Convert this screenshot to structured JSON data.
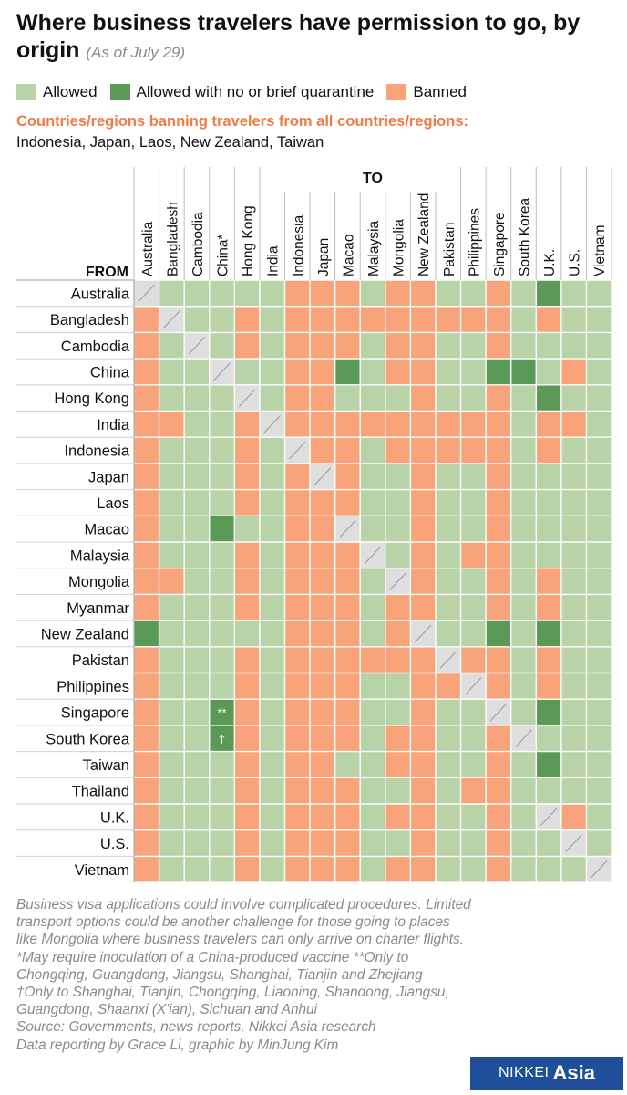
{
  "title": "Where business travelers have permission to go, by origin",
  "subtitle": "(As of July 29)",
  "legend": {
    "allowed": "Allowed",
    "quarantine": "Allowed with no or brief quarantine",
    "banned": "Banned"
  },
  "colors": {
    "allowed": "#b9d3a8",
    "quarantine": "#5b9a56",
    "banned": "#f8a37a",
    "self": "#dedede",
    "accent": "#f07c45",
    "brand": "#1f4f9a"
  },
  "banned_all_heading": "Countries/regions banning travelers from all countries/regions:",
  "banned_all_list": "Indonesia, Japan, Laos, New Zealand, Taiwan",
  "chart_data": {
    "type": "heatmap",
    "row_axis_label": "FROM",
    "col_axis_label": "TO",
    "legend_placement": "top",
    "rows": [
      "Australia",
      "Bangladesh",
      "Cambodia",
      "China",
      "Hong Kong",
      "India",
      "Indonesia",
      "Japan",
      "Laos",
      "Macao",
      "Malaysia",
      "Mongolia",
      "Myanmar",
      "New Zealand",
      "Pakistan",
      "Philippines",
      "Singapore",
      "South Korea",
      "Taiwan",
      "Thailand",
      "U.K.",
      "U.S.",
      "Vietnam"
    ],
    "columns": [
      "Australia",
      "Bangladesh",
      "Cambodia",
      "China*",
      "Hong Kong",
      "India",
      "Indonesia",
      "Japan",
      "Macao",
      "Malaysia",
      "Mongolia",
      "New Zealand",
      "Pakistan",
      "Philippines",
      "Singapore",
      "South Korea",
      "U.K.",
      "U.S.",
      "Vietnam"
    ],
    "code_key": {
      "A": "Allowed",
      "Q": "Allowed with no or brief quarantine",
      "B": "Banned",
      "-": "Same origin and destination"
    },
    "values": [
      [
        "-",
        "A",
        "A",
        "A",
        "A",
        "A",
        "B",
        "B",
        "B",
        "A",
        "B",
        "B",
        "A",
        "A",
        "B",
        "A",
        "Q",
        "A",
        "A"
      ],
      [
        "B",
        "-",
        "A",
        "A",
        "B",
        "A",
        "B",
        "B",
        "B",
        "B",
        "B",
        "B",
        "B",
        "B",
        "B",
        "A",
        "B",
        "A",
        "A"
      ],
      [
        "B",
        "A",
        "-",
        "A",
        "B",
        "A",
        "B",
        "B",
        "B",
        "A",
        "B",
        "B",
        "A",
        "A",
        "B",
        "A",
        "A",
        "A",
        "A"
      ],
      [
        "B",
        "A",
        "A",
        "-",
        "A",
        "A",
        "B",
        "B",
        "Q",
        "A",
        "B",
        "B",
        "A",
        "A",
        "Q",
        "Q",
        "A",
        "B",
        "A"
      ],
      [
        "B",
        "A",
        "A",
        "A",
        "-",
        "A",
        "B",
        "B",
        "A",
        "A",
        "A",
        "B",
        "A",
        "A",
        "B",
        "A",
        "Q",
        "A",
        "A"
      ],
      [
        "B",
        "B",
        "A",
        "A",
        "B",
        "-",
        "B",
        "B",
        "B",
        "B",
        "B",
        "B",
        "B",
        "B",
        "B",
        "A",
        "B",
        "B",
        "A"
      ],
      [
        "B",
        "A",
        "A",
        "A",
        "B",
        "A",
        "-",
        "B",
        "B",
        "A",
        "B",
        "B",
        "B",
        "B",
        "B",
        "A",
        "B",
        "A",
        "A"
      ],
      [
        "B",
        "A",
        "A",
        "A",
        "B",
        "A",
        "B",
        "-",
        "B",
        "A",
        "A",
        "B",
        "A",
        "A",
        "B",
        "A",
        "A",
        "A",
        "A"
      ],
      [
        "B",
        "A",
        "A",
        "A",
        "B",
        "A",
        "B",
        "B",
        "B",
        "A",
        "A",
        "B",
        "A",
        "A",
        "B",
        "A",
        "A",
        "A",
        "A"
      ],
      [
        "B",
        "A",
        "A",
        "Q",
        "A",
        "A",
        "B",
        "B",
        "-",
        "A",
        "A",
        "B",
        "A",
        "A",
        "B",
        "A",
        "A",
        "A",
        "A"
      ],
      [
        "B",
        "A",
        "A",
        "A",
        "B",
        "A",
        "B",
        "B",
        "B",
        "-",
        "A",
        "B",
        "A",
        "B",
        "B",
        "A",
        "A",
        "A",
        "A"
      ],
      [
        "B",
        "B",
        "A",
        "A",
        "B",
        "A",
        "B",
        "B",
        "B",
        "A",
        "-",
        "B",
        "A",
        "A",
        "B",
        "A",
        "B",
        "A",
        "A"
      ],
      [
        "B",
        "A",
        "A",
        "A",
        "B",
        "A",
        "B",
        "B",
        "B",
        "A",
        "B",
        "B",
        "A",
        "A",
        "B",
        "A",
        "B",
        "A",
        "A"
      ],
      [
        "Q",
        "A",
        "A",
        "A",
        "A",
        "A",
        "B",
        "B",
        "B",
        "A",
        "B",
        "-",
        "A",
        "A",
        "Q",
        "A",
        "Q",
        "A",
        "A"
      ],
      [
        "B",
        "A",
        "A",
        "A",
        "B",
        "A",
        "B",
        "B",
        "B",
        "B",
        "B",
        "B",
        "-",
        "B",
        "B",
        "A",
        "B",
        "A",
        "A"
      ],
      [
        "B",
        "A",
        "A",
        "A",
        "B",
        "A",
        "B",
        "B",
        "B",
        "A",
        "A",
        "B",
        "B",
        "-",
        "B",
        "A",
        "B",
        "A",
        "A"
      ],
      [
        "B",
        "A",
        "A",
        "Q",
        "B",
        "A",
        "B",
        "B",
        "B",
        "A",
        "A",
        "B",
        "A",
        "A",
        "-",
        "A",
        "Q",
        "A",
        "A"
      ],
      [
        "B",
        "A",
        "A",
        "Q",
        "B",
        "A",
        "B",
        "B",
        "B",
        "A",
        "B",
        "B",
        "A",
        "A",
        "B",
        "-",
        "A",
        "A",
        "A"
      ],
      [
        "B",
        "A",
        "A",
        "A",
        "B",
        "A",
        "B",
        "B",
        "A",
        "A",
        "B",
        "B",
        "A",
        "A",
        "B",
        "A",
        "Q",
        "A",
        "A"
      ],
      [
        "B",
        "A",
        "A",
        "A",
        "B",
        "A",
        "B",
        "B",
        "B",
        "A",
        "A",
        "B",
        "A",
        "B",
        "B",
        "A",
        "A",
        "A",
        "A"
      ],
      [
        "B",
        "A",
        "A",
        "A",
        "B",
        "A",
        "B",
        "B",
        "B",
        "A",
        "B",
        "B",
        "A",
        "A",
        "B",
        "A",
        "-",
        "B",
        "A"
      ],
      [
        "B",
        "A",
        "A",
        "A",
        "B",
        "A",
        "B",
        "B",
        "B",
        "A",
        "A",
        "B",
        "A",
        "A",
        "B",
        "A",
        "A",
        "-",
        "A"
      ],
      [
        "B",
        "A",
        "A",
        "A",
        "B",
        "A",
        "B",
        "B",
        "B",
        "A",
        "B",
        "B",
        "A",
        "A",
        "B",
        "A",
        "A",
        "A",
        "-"
      ]
    ],
    "cell_marks": [
      {
        "row": "Singapore",
        "column": "China*",
        "mark": "**"
      },
      {
        "row": "South Korea",
        "column": "China*",
        "mark": "†"
      }
    ]
  },
  "notes": [
    "Business visa applications could involve complicated procedures. Limited",
    "transport options could be another challenge for those going to places",
    "like Mongolia where business travelers can only arrive on charter flights.",
    "*May require inoculation of a China-produced vaccine    **Only to",
    "Chongqing, Guangdong, Jiangsu, Shanghai, Tianjin and Zhejiang",
    "†Only to Shanghai, Tianjin, Chongqing, Liaoning, Shandong, Jiangsu,",
    "Guangdong, Shaanxi (X'ian), Sichuan and Anhui",
    "Source: Governments, news reports, Nikkei Asia research",
    "Data reporting by Grace Li, graphic by MinJung Kim"
  ],
  "brand": {
    "part1": "NIKKEI",
    "part2": "Asia"
  }
}
